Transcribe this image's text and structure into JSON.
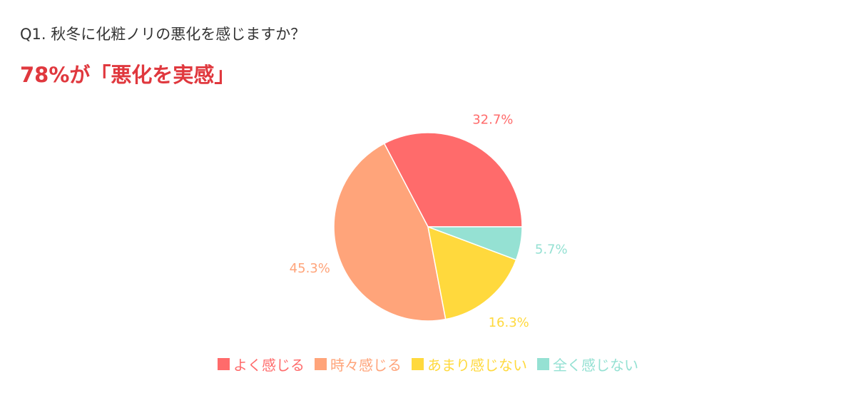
{
  "question": "Q1. 秋冬に化粧ノリの悪化を感じますか？",
  "headline": "78%が「悪化を実感」",
  "chart_data": {
    "type": "pie",
    "title": "Q1. 秋冬に化粧ノリの悪化を感じますか？",
    "slices": [
      {
        "label": "よく感じる",
        "value": 32.7,
        "display": "32.7%",
        "color": "#FF6B6B"
      },
      {
        "label": "時々感じる",
        "value": 45.3,
        "display": "45.3%",
        "color": "#FFA47A"
      },
      {
        "label": "あまり感じない",
        "value": 16.3,
        "display": "16.3%",
        "color": "#FFD93D"
      },
      {
        "label": "全く感じない",
        "value": 5.7,
        "display": "5.7%",
        "color": "#95E1D3"
      }
    ],
    "start_angle": "3 o'clock, counterclockwise",
    "legend_position": "bottom"
  }
}
